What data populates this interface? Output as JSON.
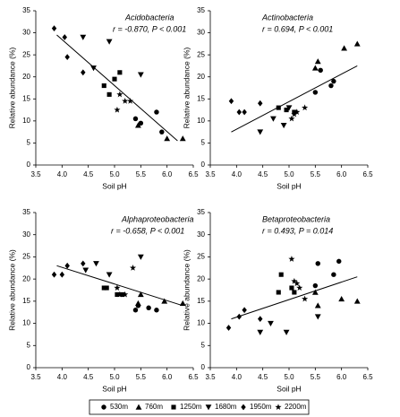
{
  "chart_data": [
    {
      "type": "scatter",
      "title": "Acidobacteria",
      "subtitle": "r = -0.870, P < 0.001",
      "x_label": "Soil pH",
      "y_label": "Relative abundance (%)",
      "xlim": [
        3.5,
        6.5
      ],
      "xticks": [
        3.5,
        {
          "value": 4,
          "label": "4.0"
        },
        4.5,
        {
          "value": 5,
          "label": "5.0"
        },
        5.5,
        {
          "value": 6,
          "label": "6.0"
        },
        6.5
      ],
      "ylim": [
        0,
        35
      ],
      "yticks": [
        0,
        5,
        10,
        15,
        20,
        25,
        30,
        35
      ],
      "trend": {
        "x": [
          3.9,
          6.2
        ],
        "y": [
          29.5,
          5.5
        ]
      },
      "series": [
        {
          "name": "530m",
          "marker": "circle",
          "color": "#000000",
          "x": [
            5.4,
            5.5,
            5.8,
            5.9
          ],
          "values": [
            10.5,
            9.5,
            12,
            7.5
          ]
        },
        {
          "name": "760m",
          "marker": "triangle",
          "color": "#000000",
          "x": [
            5.45,
            6.0,
            6.3
          ],
          "values": [
            9,
            6,
            6
          ]
        },
        {
          "name": "1250m",
          "marker": "square",
          "color": "#000000",
          "x": [
            4.8,
            4.9,
            5.0,
            5.1
          ],
          "values": [
            18,
            16,
            19.5,
            21
          ]
        },
        {
          "name": "1680m",
          "marker": "triangle-down",
          "color": "#000000",
          "x": [
            4.4,
            4.6,
            4.9,
            5.5
          ],
          "values": [
            29,
            22,
            28,
            20.5
          ]
        },
        {
          "name": "1950m",
          "marker": "diamond",
          "color": "#000000",
          "x": [
            3.85,
            4.05,
            4.1,
            4.4
          ],
          "values": [
            31,
            29,
            24.5,
            21
          ]
        },
        {
          "name": "2200m",
          "marker": "star",
          "color": "#000000",
          "x": [
            5.1,
            5.2,
            5.3,
            5.05
          ],
          "values": [
            16,
            14.5,
            14.5,
            12.5
          ]
        }
      ]
    },
    {
      "type": "scatter",
      "title": "Actinobacteria",
      "subtitle": "r = 0.694, P < 0.001",
      "x_label": "Soil pH",
      "y_label": "Relative abundance (%)",
      "xlim": [
        3.5,
        6.5
      ],
      "xticks": [
        3.5,
        {
          "value": 4,
          "label": "4.0"
        },
        4.5,
        {
          "value": 5,
          "label": "5.0"
        },
        5.5,
        {
          "value": 6,
          "label": "6.0"
        },
        6.5
      ],
      "ylim": [
        0,
        35
      ],
      "yticks": [
        0,
        5,
        10,
        15,
        20,
        25,
        30,
        35
      ],
      "trend": {
        "x": [
          3.9,
          6.3
        ],
        "y": [
          7.5,
          22.5
        ]
      },
      "series": [
        {
          "name": "530m",
          "marker": "circle",
          "color": "#000000",
          "x": [
            5.5,
            5.6,
            5.8,
            5.85
          ],
          "values": [
            16.5,
            21.5,
            18,
            19
          ]
        },
        {
          "name": "760m",
          "marker": "triangle",
          "color": "#000000",
          "x": [
            5.55,
            6.05,
            6.3,
            5.5
          ],
          "values": [
            23.5,
            26.5,
            27.5,
            22
          ]
        },
        {
          "name": "1250m",
          "marker": "square",
          "color": "#000000",
          "x": [
            4.8,
            4.95,
            5.1
          ],
          "values": [
            13,
            12.5,
            12
          ]
        },
        {
          "name": "1680m",
          "marker": "triangle-down",
          "color": "#000000",
          "x": [
            4.45,
            4.7,
            4.9,
            5.0
          ],
          "values": [
            7.5,
            10.5,
            9,
            13
          ]
        },
        {
          "name": "1950m",
          "marker": "diamond",
          "color": "#000000",
          "x": [
            3.9,
            4.05,
            4.15,
            4.45
          ],
          "values": [
            14.5,
            12,
            12,
            14
          ]
        },
        {
          "name": "2200m",
          "marker": "star",
          "color": "#000000",
          "x": [
            5.05,
            5.1,
            5.15,
            5.3
          ],
          "values": [
            10.5,
            11.5,
            12,
            13
          ]
        }
      ]
    },
    {
      "type": "scatter",
      "title": "Alphaproteobacteria",
      "subtitle": "r = -0.658, P < 0.001",
      "x_label": "Soil pH",
      "y_label": "Relative abundance (%)",
      "xlim": [
        3.5,
        6.5
      ],
      "xticks": [
        3.5,
        {
          "value": 4,
          "label": "4.0"
        },
        4.5,
        {
          "value": 5,
          "label": "5.0"
        },
        5.5,
        {
          "value": 6,
          "label": "6.0"
        },
        6.5
      ],
      "ylim": [
        0,
        35
      ],
      "yticks": [
        0,
        5,
        10,
        15,
        20,
        25,
        30,
        35
      ],
      "trend": {
        "x": [
          3.9,
          6.3
        ],
        "y": [
          23,
          14
        ]
      },
      "series": [
        {
          "name": "530m",
          "marker": "circle",
          "color": "#000000",
          "x": [
            5.4,
            5.45,
            5.65,
            5.8
          ],
          "values": [
            13,
            14,
            13.5,
            13
          ]
        },
        {
          "name": "760m",
          "marker": "triangle",
          "color": "#000000",
          "x": [
            5.5,
            5.95,
            6.3,
            5.45
          ],
          "values": [
            16.5,
            15,
            14.5,
            14.5
          ]
        },
        {
          "name": "1250m",
          "marker": "square",
          "color": "#000000",
          "x": [
            4.8,
            4.85,
            5.05,
            5.15
          ],
          "values": [
            18,
            18,
            16.5,
            16.5
          ]
        },
        {
          "name": "1680m",
          "marker": "triangle-down",
          "color": "#000000",
          "x": [
            4.45,
            4.65,
            4.9,
            5.5
          ],
          "values": [
            22,
            23.5,
            21,
            25
          ]
        },
        {
          "name": "1950m",
          "marker": "diamond",
          "color": "#000000",
          "x": [
            3.85,
            4.0,
            4.1,
            4.4
          ],
          "values": [
            21,
            21,
            23,
            23.5
          ]
        },
        {
          "name": "2200m",
          "marker": "star",
          "color": "#000000",
          "x": [
            5.05,
            5.1,
            5.2,
            5.35
          ],
          "values": [
            18,
            16.5,
            16.5,
            22.5
          ]
        }
      ]
    },
    {
      "type": "scatter",
      "title": "Betaproteobacteria",
      "subtitle": "r = 0.493, P = 0.014",
      "x_label": "Soil pH",
      "y_label": "Relative abundance (%)",
      "xlim": [
        3.5,
        6.5
      ],
      "xticks": [
        3.5,
        {
          "value": 4,
          "label": "4.0"
        },
        4.5,
        {
          "value": 5,
          "label": "5.0"
        },
        5.5,
        {
          "value": 6,
          "label": "6.0"
        },
        6.5
      ],
      "ylim": [
        0,
        35
      ],
      "yticks": [
        0,
        5,
        10,
        15,
        20,
        25,
        30,
        35
      ],
      "trend": {
        "x": [
          3.9,
          6.3
        ],
        "y": [
          11,
          20.5
        ]
      },
      "series": [
        {
          "name": "530m",
          "marker": "circle",
          "color": "#000000",
          "x": [
            5.55,
            5.85,
            5.95,
            5.5
          ],
          "values": [
            23.5,
            21,
            24,
            18.5
          ]
        },
        {
          "name": "760m",
          "marker": "triangle",
          "color": "#000000",
          "x": [
            5.5,
            6.0,
            6.3,
            5.55
          ],
          "values": [
            17,
            15.5,
            15,
            14
          ]
        },
        {
          "name": "1250m",
          "marker": "square",
          "color": "#000000",
          "x": [
            4.85,
            4.8,
            5.05,
            5.1
          ],
          "values": [
            21,
            17,
            18,
            17
          ]
        },
        {
          "name": "1680m",
          "marker": "triangle-down",
          "color": "#000000",
          "x": [
            4.45,
            4.65,
            4.95,
            5.55
          ],
          "values": [
            8,
            10,
            8,
            11.5
          ]
        },
        {
          "name": "1950m",
          "marker": "diamond",
          "color": "#000000",
          "x": [
            3.85,
            4.05,
            4.15,
            4.45
          ],
          "values": [
            9,
            11.5,
            13,
            11
          ]
        },
        {
          "name": "2200m",
          "marker": "star",
          "color": "#000000",
          "x": [
            5.05,
            5.1,
            5.2,
            5.3,
            5.15
          ],
          "values": [
            24.5,
            19.5,
            18,
            15.5,
            19
          ]
        }
      ]
    }
  ]
}
